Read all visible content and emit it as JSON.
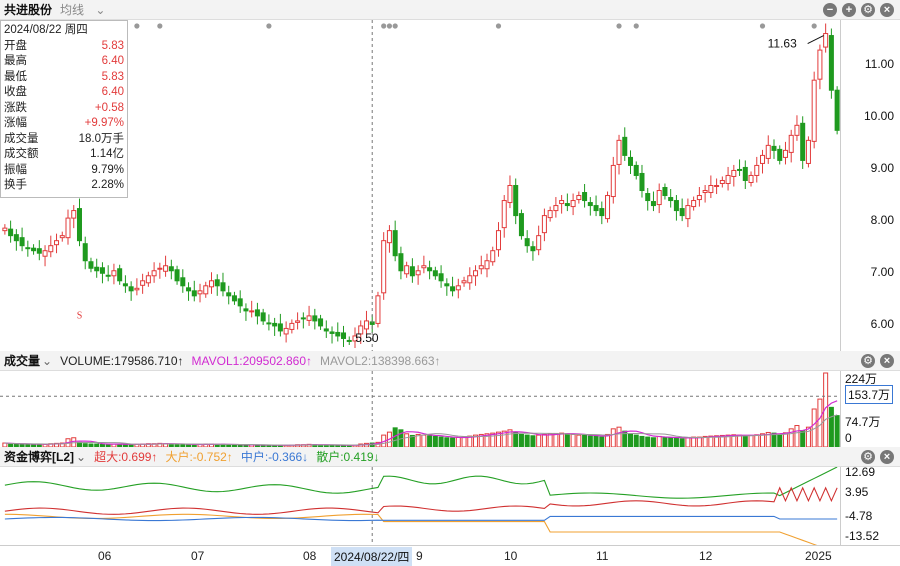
{
  "stock_name": "共进股份",
  "indicator_menu": "均线",
  "info_box": {
    "date": "2024/08/22 周四",
    "rows": [
      {
        "label": "开盘",
        "value": "5.83",
        "color": "red"
      },
      {
        "label": "最高",
        "value": "6.40",
        "color": "red"
      },
      {
        "label": "最低",
        "value": "5.83",
        "color": "red"
      },
      {
        "label": "收盘",
        "value": "6.40",
        "color": "red"
      },
      {
        "label": "涨跌",
        "value": "+0.58",
        "color": "red"
      },
      {
        "label": "涨幅",
        "value": "+9.97%",
        "color": "red"
      },
      {
        "label": "成交量",
        "value": "18.0万手",
        "color": "black"
      },
      {
        "label": "成交额",
        "value": "1.14亿",
        "color": "black"
      },
      {
        "label": "振幅",
        "value": "9.79%",
        "color": "black"
      },
      {
        "label": "换手",
        "value": "2.28%",
        "color": "black"
      }
    ]
  },
  "price_axis": [
    "11.00",
    "10.00",
    "9.00",
    "8.00",
    "7.00",
    "6.00"
  ],
  "price_high_label": "11.63",
  "price_low_label": "5.50",
  "marker_s": "S",
  "volume": {
    "title": "成交量",
    "volume_text": "VOLUME:179586.710↑",
    "mavol1_text": "MAVOL1:209502.860↑",
    "mavol2_text": "MAVOL2:138398.663↑",
    "axis": [
      "224万",
      "153.7万",
      "74.7万",
      "0"
    ]
  },
  "fund": {
    "title": "资金博弈[L2]",
    "super_text": "超大:0.699↑",
    "big_text": "大户:-0.752↑",
    "mid_text": "中户:-0.366↓",
    "small_text": "散户:0.419↓",
    "axis": [
      "12.69",
      "3.95",
      "-4.78",
      "-13.52"
    ]
  },
  "time_axis": [
    "06",
    "07",
    "08",
    "9",
    "10",
    "11",
    "12",
    "2025"
  ],
  "cursor_date": "2024/08/22/四",
  "colors": {
    "up": "#e23b3b",
    "down": "#1f9a1f",
    "mavol1": "#d12bd1",
    "mavol2": "#999999",
    "super": "#d03030",
    "big": "#f0a030",
    "mid": "#3a78d4",
    "small": "#25a025"
  },
  "chart_data": {
    "type": "candlestick",
    "close_series": [
      7.75,
      7.6,
      7.5,
      7.4,
      7.35,
      7.3,
      7.25,
      7.3,
      7.4,
      7.5,
      7.6,
      7.95,
      8.1,
      7.5,
      7.1,
      6.95,
      6.9,
      6.85,
      6.8,
      6.9,
      6.7,
      6.6,
      6.5,
      6.55,
      6.7,
      6.8,
      6.9,
      6.95,
      7.0,
      6.9,
      6.7,
      6.6,
      6.5,
      6.4,
      6.5,
      6.6,
      6.7,
      6.6,
      6.5,
      6.4,
      6.3,
      6.2,
      6.1,
      6.1,
      6.0,
      5.9,
      5.85,
      5.8,
      5.7,
      5.75,
      5.85,
      5.9,
      5.95,
      6.0,
      5.9,
      5.8,
      5.7,
      5.65,
      5.6,
      5.55,
      5.5,
      5.6,
      5.8,
      5.9,
      5.83,
      6.4,
      7.5,
      7.7,
      7.2,
      6.9,
      7.0,
      6.8,
      6.9,
      7.0,
      6.9,
      6.8,
      6.7,
      6.6,
      6.5,
      6.6,
      6.7,
      6.8,
      6.9,
      7.0,
      7.1,
      7.3,
      7.7,
      8.3,
      8.6,
      8.0,
      7.6,
      7.4,
      7.3,
      7.6,
      8.0,
      8.1,
      8.2,
      8.3,
      8.2,
      8.3,
      8.4,
      8.3,
      8.2,
      8.1,
      8.0,
      8.4,
      9.0,
      9.5,
      9.2,
      9.0,
      8.8,
      8.5,
      8.3,
      8.2,
      8.5,
      8.4,
      8.3,
      8.1,
      8.0,
      8.2,
      8.3,
      8.4,
      8.5,
      8.6,
      8.6,
      8.7,
      8.8,
      8.9,
      8.9,
      8.7,
      8.8,
      9.0,
      9.2,
      9.4,
      9.3,
      9.1,
      9.3,
      9.6,
      9.8,
      9.1,
      9.5,
      10.7,
      11.3,
      11.63,
      10.5,
      9.7
    ],
    "volume_series": [
      12,
      10,
      9,
      8,
      8,
      9,
      9,
      8,
      10,
      11,
      12,
      25,
      28,
      14,
      10,
      9,
      9,
      8,
      8,
      9,
      9,
      8,
      7,
      8,
      9,
      10,
      10,
      11,
      10,
      9,
      8,
      8,
      7,
      7,
      8,
      9,
      9,
      8,
      8,
      7,
      7,
      6,
      6,
      6,
      6,
      6,
      5,
      5,
      5,
      5,
      6,
      7,
      7,
      8,
      7,
      6,
      6,
      6,
      5,
      5,
      5,
      6,
      9,
      11,
      12,
      14,
      36,
      45,
      58,
      52,
      40,
      35,
      38,
      36,
      34,
      32,
      30,
      28,
      27,
      29,
      30,
      33,
      36,
      38,
      40,
      42,
      45,
      48,
      52,
      44,
      38,
      36,
      34,
      36,
      38,
      40,
      41,
      42,
      40,
      38,
      36,
      35,
      33,
      32,
      30,
      38,
      55,
      60,
      48,
      40,
      36,
      32,
      30,
      28,
      32,
      30,
      28,
      26,
      25,
      28,
      30,
      30,
      32,
      33,
      34,
      35,
      36,
      37,
      36,
      34,
      35,
      37,
      40,
      44,
      42,
      38,
      43,
      55,
      65,
      50,
      60,
      115,
      145,
      224,
      120,
      95
    ]
  }
}
